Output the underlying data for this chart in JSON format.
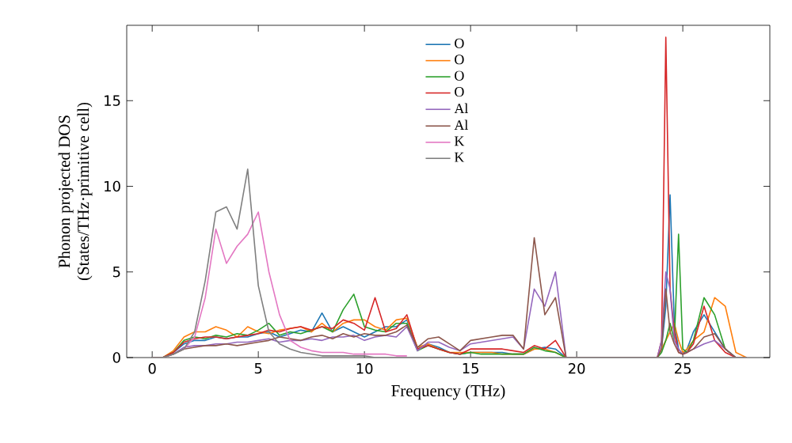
{
  "chart_data": {
    "type": "line",
    "xlabel": "Frequency (THz)",
    "ylabel": "Phonon projected DOS\n(States/THz·primitive cell)",
    "x": [
      0,
      0.5,
      1,
      1.5,
      2,
      2.5,
      3,
      3.5,
      4,
      4.5,
      5,
      5.5,
      6,
      6.5,
      7,
      7.5,
      8,
      8.5,
      9,
      9.5,
      10,
      10.5,
      11,
      11.5,
      12,
      12.5,
      13,
      13.5,
      14,
      14.5,
      15,
      15.5,
      16,
      16.5,
      17,
      17.5,
      18,
      18.5,
      19,
      19.5,
      20,
      20.5,
      21,
      21.5,
      22,
      22.5,
      23,
      23.5,
      23.8,
      24,
      24.2,
      24.4,
      24.6,
      24.8,
      25,
      25.2,
      25.5,
      26,
      26.5,
      27,
      27.5,
      28
    ],
    "series": [
      {
        "name": "O",
        "color": "#1f77b4",
        "values": [
          0,
          0,
          0.3,
          0.8,
          1,
          1,
          1.2,
          1.1,
          1.2,
          1.2,
          1.4,
          1.5,
          1.2,
          1.4,
          1.6,
          1.5,
          2.6,
          1.5,
          1.8,
          1.5,
          1.2,
          1.5,
          1.8,
          1.8,
          2.2,
          0.5,
          0.8,
          0.6,
          0.3,
          0.2,
          0.3,
          0.3,
          0.3,
          0.3,
          0.2,
          0.2,
          0.5,
          0.6,
          0.5,
          0,
          0,
          0,
          0,
          0,
          0,
          0,
          0,
          0,
          0,
          0.5,
          3,
          9.5,
          2,
          0.5,
          0.2,
          0.5,
          1.5,
          2.5,
          1.5,
          0.5,
          0,
          0
        ]
      },
      {
        "name": "O",
        "color": "#ff7f0e",
        "values": [
          0,
          0,
          0.4,
          1.2,
          1.5,
          1.5,
          1.8,
          1.6,
          1.2,
          1.8,
          1.5,
          1.4,
          1.6,
          1.7,
          1.8,
          1.5,
          2,
          1.5,
          2,
          2.2,
          2.2,
          1.8,
          1.6,
          2.2,
          2.3,
          0.6,
          0.8,
          0.5,
          0.3,
          0.3,
          0.3,
          0.3,
          0.3,
          0.2,
          0.2,
          0.2,
          0.5,
          0.5,
          0.3,
          0,
          0,
          0,
          0,
          0,
          0,
          0,
          0,
          0,
          0,
          0.5,
          1,
          1.5,
          2,
          1,
          0.3,
          0.5,
          1,
          1.5,
          3.5,
          3,
          0.3,
          0
        ]
      },
      {
        "name": "O",
        "color": "#2ca02c",
        "values": [
          0,
          0,
          0.3,
          1,
          1.2,
          1.1,
          1.3,
          1.2,
          1.4,
          1.3,
          1.6,
          2,
          1.3,
          1.5,
          1.4,
          1.6,
          1.8,
          1.5,
          2.8,
          3.7,
          1.8,
          1.6,
          1.5,
          2,
          2,
          0.4,
          0.7,
          0.5,
          0.3,
          0.2,
          0.3,
          0.2,
          0.2,
          0.2,
          0.2,
          0.2,
          0.6,
          0.4,
          0.3,
          0,
          0,
          0,
          0,
          0,
          0,
          0,
          0,
          0,
          0,
          0.3,
          1,
          2,
          1,
          7.2,
          0.5,
          0.3,
          1,
          3.5,
          2.5,
          0.5,
          0,
          0
        ]
      },
      {
        "name": "O",
        "color": "#d62728",
        "values": [
          0,
          0,
          0.3,
          0.9,
          1.1,
          1.2,
          1.2,
          1.1,
          1.2,
          1.3,
          1.4,
          1.6,
          1.5,
          1.7,
          1.8,
          1.6,
          1.8,
          1.7,
          2.2,
          2,
          1.6,
          3.5,
          1.5,
          1.7,
          2.5,
          0.5,
          0.7,
          0.5,
          0.3,
          0.2,
          0.5,
          0.5,
          0.5,
          0.5,
          0.4,
          0.3,
          0.7,
          0.5,
          1,
          0,
          0,
          0,
          0,
          0,
          0,
          0,
          0,
          0,
          0,
          1,
          18.7,
          4,
          1.5,
          0.3,
          0.2,
          0.3,
          0.8,
          3,
          1,
          0.3,
          0,
          0
        ]
      },
      {
        "name": "Al",
        "color": "#9467bd",
        "values": [
          0,
          0,
          0.2,
          0.6,
          0.7,
          0.7,
          0.8,
          0.8,
          0.9,
          0.9,
          1,
          1.1,
          0.9,
          1,
          1,
          1.1,
          1,
          1.2,
          1.2,
          1.3,
          1,
          1.2,
          1.3,
          1.2,
          1.8,
          0.4,
          0.9,
          0.9,
          0.6,
          0.4,
          0.8,
          0.9,
          1,
          1.1,
          1.2,
          0.5,
          4,
          3,
          5,
          0,
          0,
          0,
          0,
          0,
          0,
          0,
          0,
          0,
          0,
          1,
          5,
          4,
          1,
          0.5,
          0.2,
          0.3,
          0.5,
          0.8,
          1,
          0.5,
          0,
          0
        ]
      },
      {
        "name": "Al",
        "color": "#8c564b",
        "values": [
          0,
          0,
          0.2,
          0.5,
          0.6,
          0.7,
          0.7,
          0.8,
          0.7,
          0.8,
          0.9,
          1,
          1.2,
          1.1,
          1,
          1.2,
          1.3,
          1.1,
          1.4,
          1.2,
          1.4,
          1.3,
          1.3,
          1.5,
          1.9,
          0.6,
          1.1,
          1.2,
          0.8,
          0.4,
          1,
          1.1,
          1.2,
          1.3,
          1.3,
          0.5,
          7,
          2.5,
          3.5,
          0,
          0,
          0,
          0,
          0,
          0,
          0,
          0,
          0,
          0,
          0.5,
          4,
          1.5,
          0.8,
          0.3,
          0.2,
          0.3,
          0.5,
          1.2,
          1.4,
          0.5,
          0,
          0
        ]
      },
      {
        "name": "K",
        "color": "#e377c2",
        "values": [
          null,
          null,
          null,
          0.5,
          1.2,
          3.5,
          7.5,
          5.5,
          6.5,
          7.2,
          8.5,
          5,
          2.5,
          1,
          0.6,
          0.4,
          0.3,
          0.3,
          0.3,
          0.2,
          0.2,
          0.2,
          0.2,
          0.1,
          0.1,
          null,
          null,
          null,
          null,
          null,
          null,
          null,
          null,
          null,
          null,
          null,
          null,
          null,
          null,
          null,
          null,
          null,
          null,
          null,
          null,
          null,
          null,
          null,
          null,
          null,
          null,
          null,
          null,
          null,
          null,
          null,
          null,
          null,
          null,
          null,
          null,
          null
        ]
      },
      {
        "name": "K",
        "color": "#7f7f7f",
        "values": [
          0,
          0,
          0.2,
          0.5,
          1.5,
          4.5,
          8.5,
          8.8,
          7.5,
          11,
          4.2,
          1.5,
          0.8,
          0.5,
          0.3,
          0.2,
          0.1,
          0.1,
          0.1,
          0.1,
          0.1,
          0,
          0,
          0,
          0,
          0,
          0,
          0,
          0,
          0,
          0,
          0,
          0,
          0,
          0,
          0,
          0,
          0,
          0,
          0,
          0,
          0,
          0,
          0,
          0,
          0,
          0,
          0,
          0,
          0,
          0,
          0,
          0,
          0,
          0,
          0,
          0,
          0,
          0,
          0,
          0,
          0
        ]
      }
    ],
    "xlim": [
      -1.2,
      29.1
    ],
    "ylim": [
      0,
      19.4
    ],
    "xticks": [
      0,
      5,
      10,
      15,
      20,
      25
    ],
    "yticks": [
      0,
      5,
      10,
      15
    ],
    "legend": "top",
    "grid": false,
    "marker": "none",
    "line_style": "solid"
  }
}
